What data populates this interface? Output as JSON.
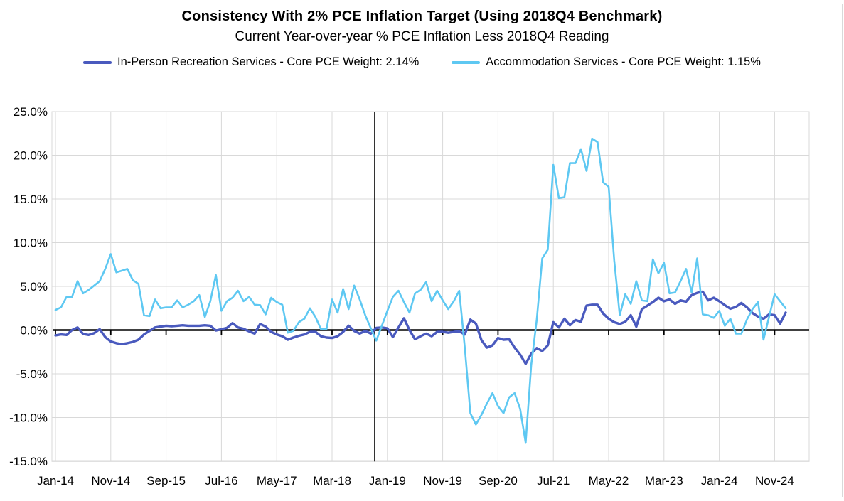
{
  "header": {
    "title": "Consistency With 2% PCE Inflation Target (Using 2018Q4 Benchmark)",
    "subtitle": "Current Year-over-year % PCE Inflation Less 2018Q4 Reading"
  },
  "legend": [
    {
      "label": "In-Person Recreation Services - Core PCE Weight: 2.14%",
      "color": "#4a5abe"
    },
    {
      "label": "Accommodation Services - Core PCE Weight: 1.15%",
      "color": "#5ec8f2"
    }
  ],
  "colors": {
    "grid": "#d9d9d9",
    "axis": "#000000",
    "series_dark_blue": "#4a5abe",
    "series_light_blue": "#5ec8f2"
  },
  "chart_data": {
    "type": "line",
    "title": "Consistency With 2% PCE Inflation Target (Using 2018Q4 Benchmark)",
    "subtitle": "Current Year-over-year % PCE Inflation Less 2018Q4 Reading",
    "x_unit": "month",
    "x_start": "Jan-2014",
    "x_end": "Jan-2025",
    "x_tick_every_months": 10,
    "x_tick_labels": [
      "Jan-14",
      "Nov-14",
      "Sep-15",
      "Jul-16",
      "May-17",
      "Mar-18",
      "Jan-19",
      "Nov-19",
      "Sep-20",
      "Jul-21",
      "May-22",
      "Mar-23",
      "Jan-24",
      "Nov-24"
    ],
    "y_tick_labels": [
      "25.0%",
      "20.0%",
      "15.0%",
      "10.0%",
      "5.0%",
      "0.0%",
      "-5.0%",
      "-10.0%",
      "-15.0%"
    ],
    "ylim": [
      -15,
      25
    ],
    "y_tick_step": 5,
    "grid": true,
    "legend_position": "top",
    "benchmark_vline": {
      "x_month_index": 57.7
    },
    "series": [
      {
        "name": "In-Person Recreation Services - Core PCE Weight: 2.14%",
        "color": "#4a5abe",
        "width": 3.4,
        "values": [
          -0.6,
          -0.5,
          -0.55,
          0.0,
          0.3,
          -0.45,
          -0.55,
          -0.35,
          0.1,
          -0.8,
          -1.3,
          -1.5,
          -1.6,
          -1.5,
          -1.35,
          -1.1,
          -0.5,
          -0.1,
          0.3,
          0.4,
          0.5,
          0.45,
          0.5,
          0.55,
          0.5,
          0.5,
          0.5,
          0.55,
          0.5,
          -0.05,
          0.1,
          0.25,
          0.8,
          0.3,
          0.15,
          -0.15,
          -0.4,
          0.7,
          0.4,
          -0.2,
          -0.5,
          -0.7,
          -1.1,
          -0.85,
          -0.65,
          -0.5,
          -0.2,
          -0.2,
          -0.7,
          -0.85,
          -0.9,
          -0.7,
          -0.2,
          0.5,
          -0.1,
          -0.4,
          -0.1,
          -0.4,
          0.25,
          0.3,
          0.2,
          -0.8,
          0.3,
          1.35,
          0.0,
          -1.05,
          -0.7,
          -0.4,
          -0.7,
          -0.2,
          -0.2,
          -0.3,
          -0.2,
          -0.15,
          -0.5,
          1.2,
          0.75,
          -1.15,
          -2.0,
          -1.75,
          -0.9,
          -1.1,
          -1.05,
          -2.0,
          -2.8,
          -3.85,
          -2.7,
          -2.05,
          -2.4,
          -1.75,
          0.9,
          0.3,
          1.3,
          0.55,
          1.15,
          0.95,
          2.8,
          2.9,
          2.9,
          1.9,
          1.3,
          0.9,
          0.7,
          0.95,
          1.7,
          0.4,
          2.4,
          2.8,
          3.2,
          3.7,
          3.3,
          3.5,
          3.0,
          3.4,
          3.25,
          4.0,
          4.25,
          4.4,
          3.4,
          3.7,
          3.3,
          2.85,
          2.45,
          2.65,
          3.1,
          2.6,
          1.95,
          1.55,
          1.3,
          1.8,
          1.7,
          0.75,
          2.0
        ]
      },
      {
        "name": "Accommodation Services - Core PCE Weight: 1.15%",
        "color": "#5ec8f2",
        "width": 2.6,
        "values": [
          2.3,
          2.6,
          3.8,
          3.8,
          5.6,
          4.2,
          4.6,
          5.1,
          5.6,
          7.0,
          8.7,
          6.6,
          6.8,
          7.0,
          5.7,
          5.3,
          1.7,
          1.6,
          3.5,
          2.5,
          2.6,
          2.6,
          3.4,
          2.6,
          2.9,
          3.3,
          4.0,
          1.5,
          3.3,
          6.3,
          2.2,
          3.3,
          3.7,
          4.5,
          3.3,
          3.8,
          2.9,
          2.85,
          1.8,
          3.7,
          3.2,
          2.9,
          -0.3,
          -0.1,
          0.9,
          1.3,
          2.5,
          1.5,
          0.1,
          0.1,
          3.5,
          2.0,
          4.7,
          2.4,
          5.1,
          3.5,
          1.7,
          0.2,
          -1.2,
          0.5,
          2.2,
          3.8,
          4.5,
          3.2,
          2.0,
          4.2,
          4.6,
          5.5,
          3.3,
          4.5,
          3.4,
          2.4,
          3.3,
          4.5,
          -2.0,
          -9.5,
          -10.8,
          -9.7,
          -8.4,
          -7.2,
          -8.7,
          -9.5,
          -7.7,
          -7.2,
          -9.0,
          -12.9,
          -4.0,
          1.2,
          8.2,
          9.2,
          18.9,
          15.1,
          15.2,
          19.1,
          19.1,
          20.7,
          18.2,
          21.9,
          21.5,
          16.9,
          16.4,
          8.0,
          1.7,
          4.1,
          3.0,
          5.6,
          3.4,
          3.3,
          8.1,
          6.5,
          7.7,
          4.2,
          4.3,
          5.6,
          7.0,
          4.3,
          8.2,
          1.8,
          1.7,
          1.4,
          2.2,
          0.5,
          1.3,
          -0.4,
          -0.4,
          1.2,
          2.4,
          3.2,
          -1.1,
          1.5,
          4.1,
          3.3,
          2.5
        ]
      }
    ]
  }
}
